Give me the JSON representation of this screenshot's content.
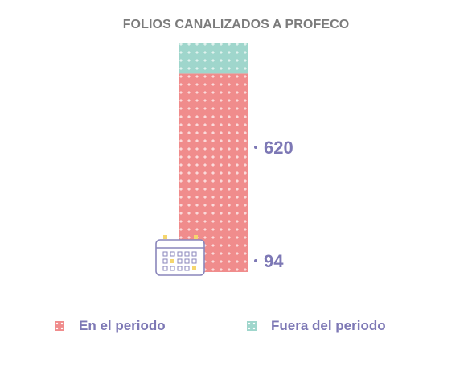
{
  "chart_data": {
    "type": "bar",
    "title": "FOLIOS CANALIZADOS A PROFECO",
    "xlabel": "",
    "ylabel": "",
    "stacked": true,
    "categories": [
      ""
    ],
    "series": [
      {
        "name": "En el periodo",
        "values": [
          620
        ],
        "color": "#f08c8c"
      },
      {
        "name": "Fuera del periodo",
        "values": [
          94
        ],
        "color": "#9fd6cc"
      }
    ],
    "data_labels": [
      "620",
      "94"
    ],
    "legend_position": "bottom",
    "grid": false,
    "icons": [
      "calendar-icon"
    ]
  }
}
